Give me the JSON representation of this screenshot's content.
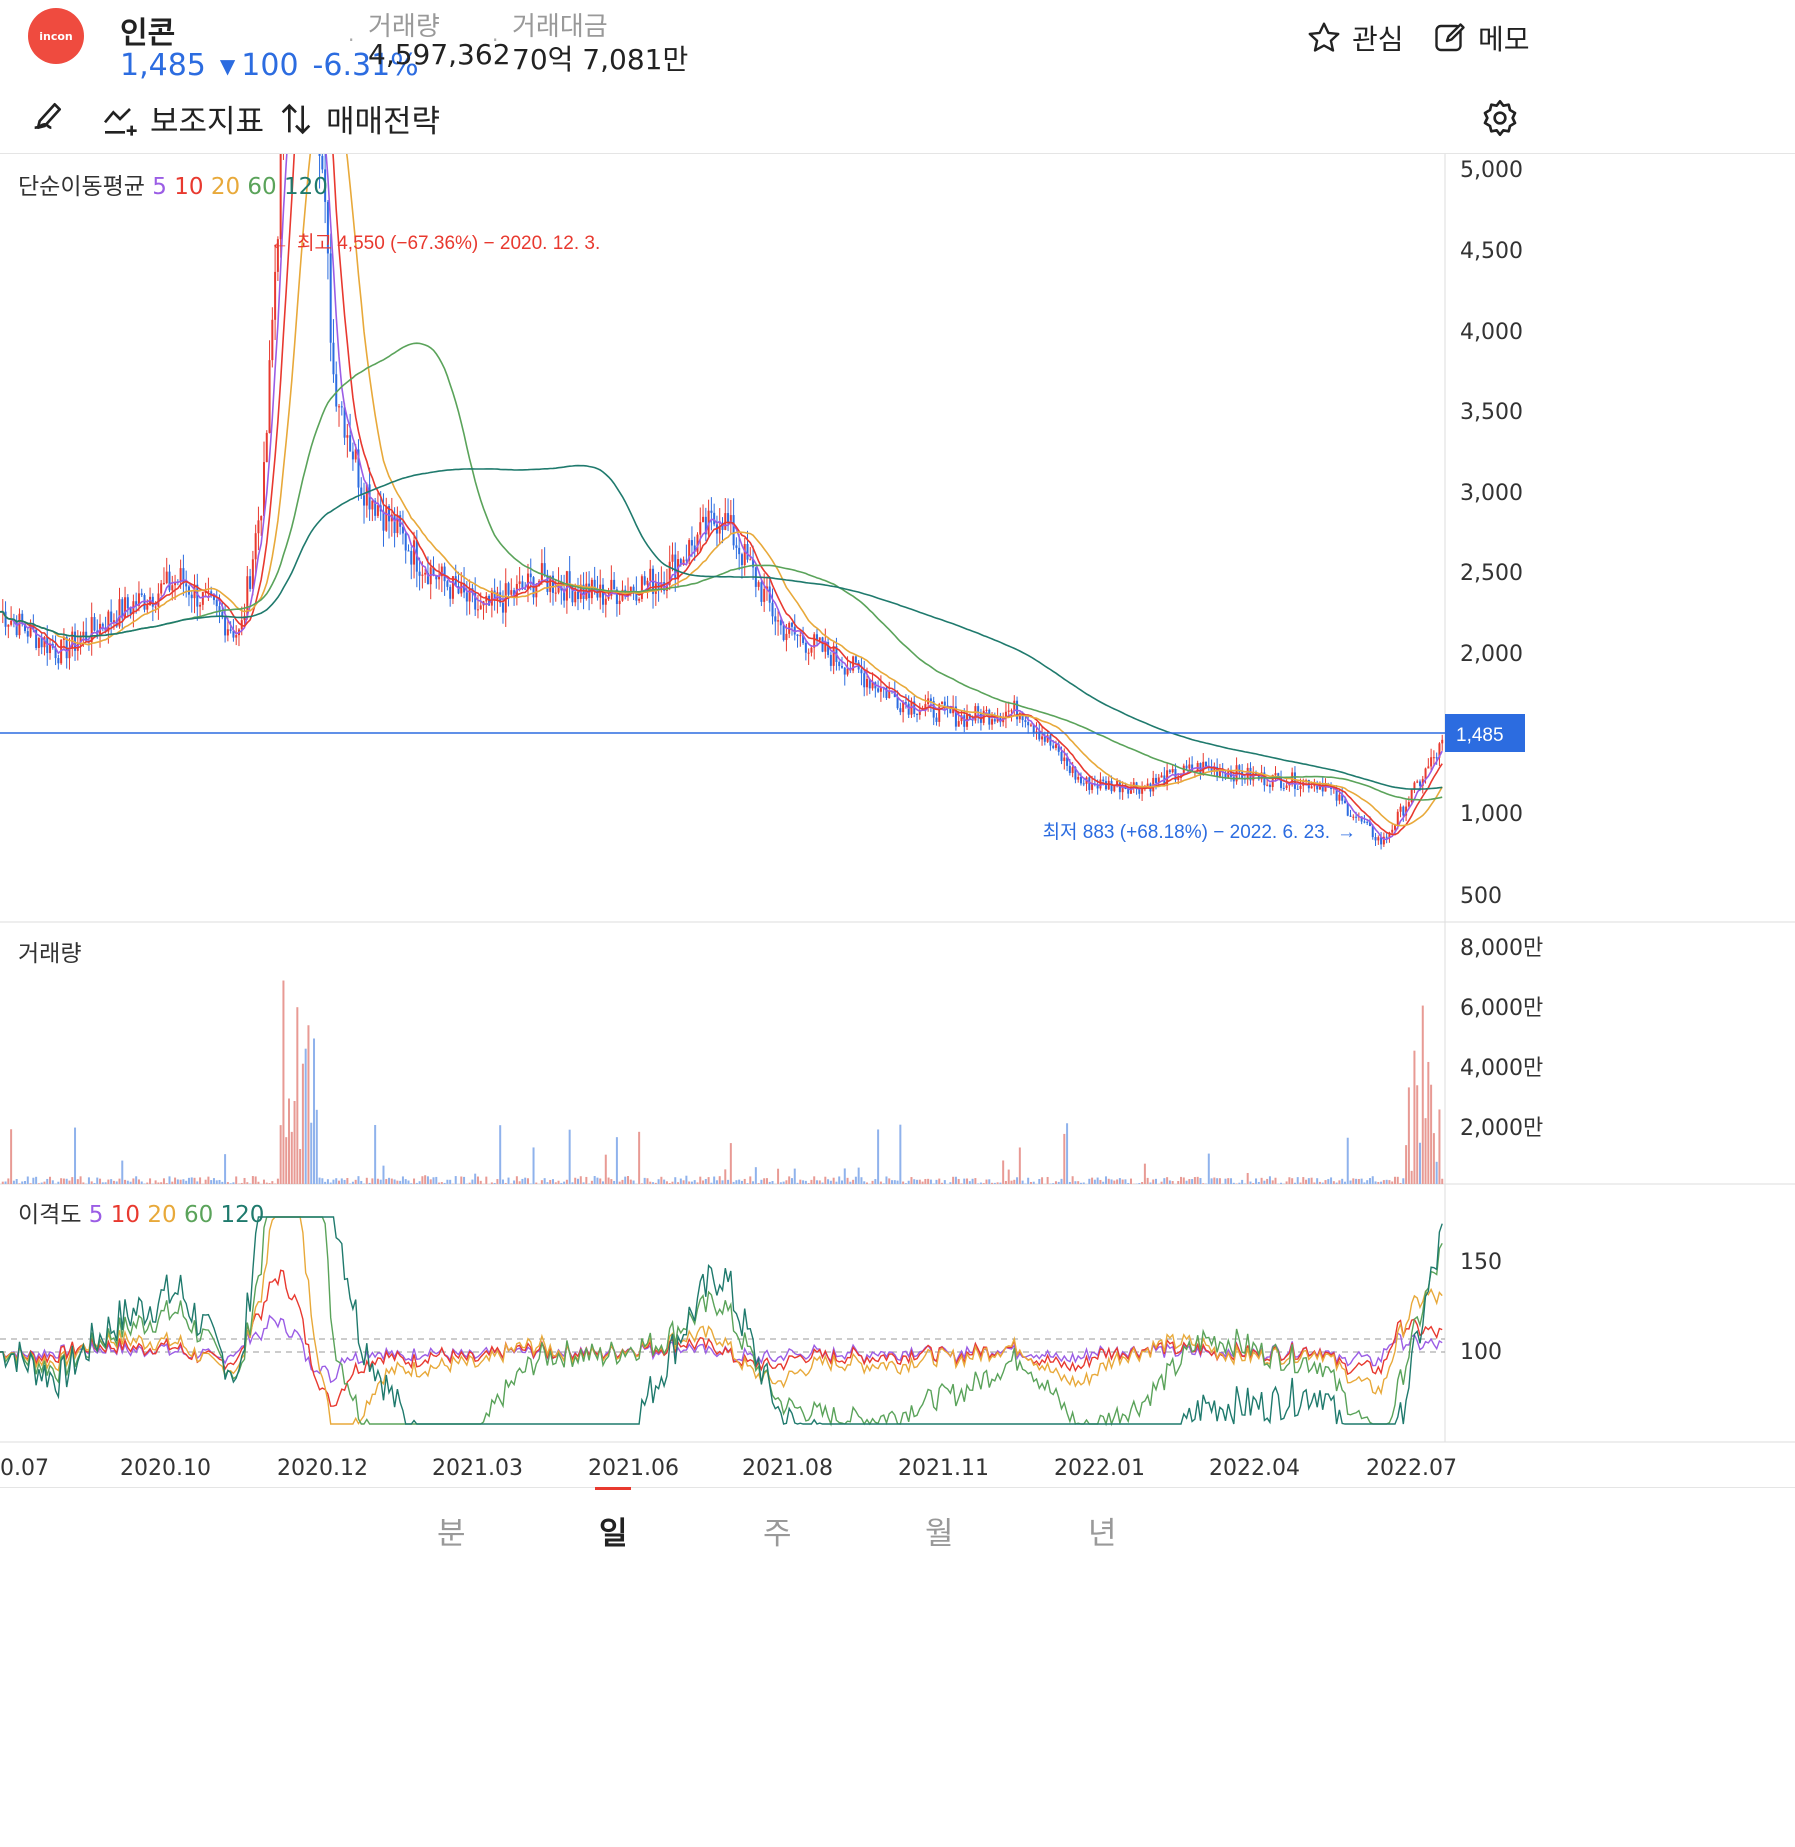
{
  "header": {
    "logo_text": "incon",
    "name": "인콘",
    "price": "1,485",
    "change_arrow": "▼",
    "change": "100",
    "change_pct": "-6.31%",
    "volume_label": "거래량",
    "volume": "4,597,362",
    "amount_label": "거래대금",
    "amount": "70억 7,081만",
    "watch_label": "관심",
    "memo_label": "메모"
  },
  "toolbar": {
    "indicator_label": "보조지표",
    "strategy_label": "매매전략"
  },
  "price_panel": {
    "legend_title": "단순이동평균",
    "ma": [
      "5",
      "10",
      "20",
      "60",
      "120"
    ],
    "high_note": "최고 4,550 (−67.36%) − 2020. 12. 3.",
    "low_note": "최저 883 (+68.18%) − 2022. 6. 23.",
    "current_price_tag": "1,485",
    "yticks": [
      "5,000",
      "4,500",
      "4,000",
      "3,500",
      "3,000",
      "2,500",
      "2,000",
      "1,000",
      "500"
    ]
  },
  "volume_panel": {
    "title": "거래량",
    "yticks": [
      "8,000만",
      "6,000만",
      "4,000만",
      "2,000만"
    ]
  },
  "disparity_panel": {
    "title": "이격도",
    "ma": [
      "5",
      "10",
      "20",
      "60",
      "120"
    ],
    "yticks": [
      "150",
      "100"
    ]
  },
  "xaxis": [
    "0.07",
    "2020.10",
    "2020.12",
    "2021.03",
    "2021.06",
    "2021.08",
    "2021.11",
    "2022.01",
    "2022.04",
    "2022.07"
  ],
  "tabs": [
    "분",
    "일",
    "주",
    "월",
    "년"
  ],
  "active_tab": "일",
  "colors": {
    "up": "#e8392f",
    "down": "#2c6ce0",
    "ma5": "#9b5de5",
    "ma10": "#e8392f",
    "ma20": "#e8a93a",
    "ma60": "#5aa35a",
    "ma120": "#1f7a6d",
    "current_line": "#2c6ce0"
  },
  "chart_data": {
    "type": "candlestick",
    "series_price": [
      {
        "date": "2020.07",
        "close": 2300
      },
      {
        "date": "2020.08",
        "close": 2050
      },
      {
        "date": "2020.09",
        "close": 2300
      },
      {
        "date": "2020.10",
        "close": 2500
      },
      {
        "date": "2020.11",
        "close": 2150
      },
      {
        "date": "2020.12",
        "close": 4550
      },
      {
        "date": "2021.01",
        "close": 3100
      },
      {
        "date": "2021.02",
        "close": 2600
      },
      {
        "date": "2021.03",
        "close": 2300
      },
      {
        "date": "2021.04",
        "close": 2500
      },
      {
        "date": "2021.05",
        "close": 2400
      },
      {
        "date": "2021.06",
        "close": 2500
      },
      {
        "date": "2021.07",
        "close": 2900
      },
      {
        "date": "2021.08",
        "close": 2200
      },
      {
        "date": "2021.09",
        "close": 2000
      },
      {
        "date": "2021.10",
        "close": 1750
      },
      {
        "date": "2021.11",
        "close": 1650
      },
      {
        "date": "2021.12",
        "close": 1700
      },
      {
        "date": "2022.01",
        "close": 1250
      },
      {
        "date": "2022.02",
        "close": 1230
      },
      {
        "date": "2022.03",
        "close": 1350
      },
      {
        "date": "2022.04",
        "close": 1280
      },
      {
        "date": "2022.05",
        "close": 1250
      },
      {
        "date": "2022.06",
        "close": 883
      },
      {
        "date": "2022.07",
        "close": 1485
      }
    ],
    "high": {
      "value": 4550,
      "date": "2020. 12. 3."
    },
    "low": {
      "value": 883,
      "date": "2022. 6. 23."
    },
    "ylim": [
      400,
      5100
    ]
  }
}
